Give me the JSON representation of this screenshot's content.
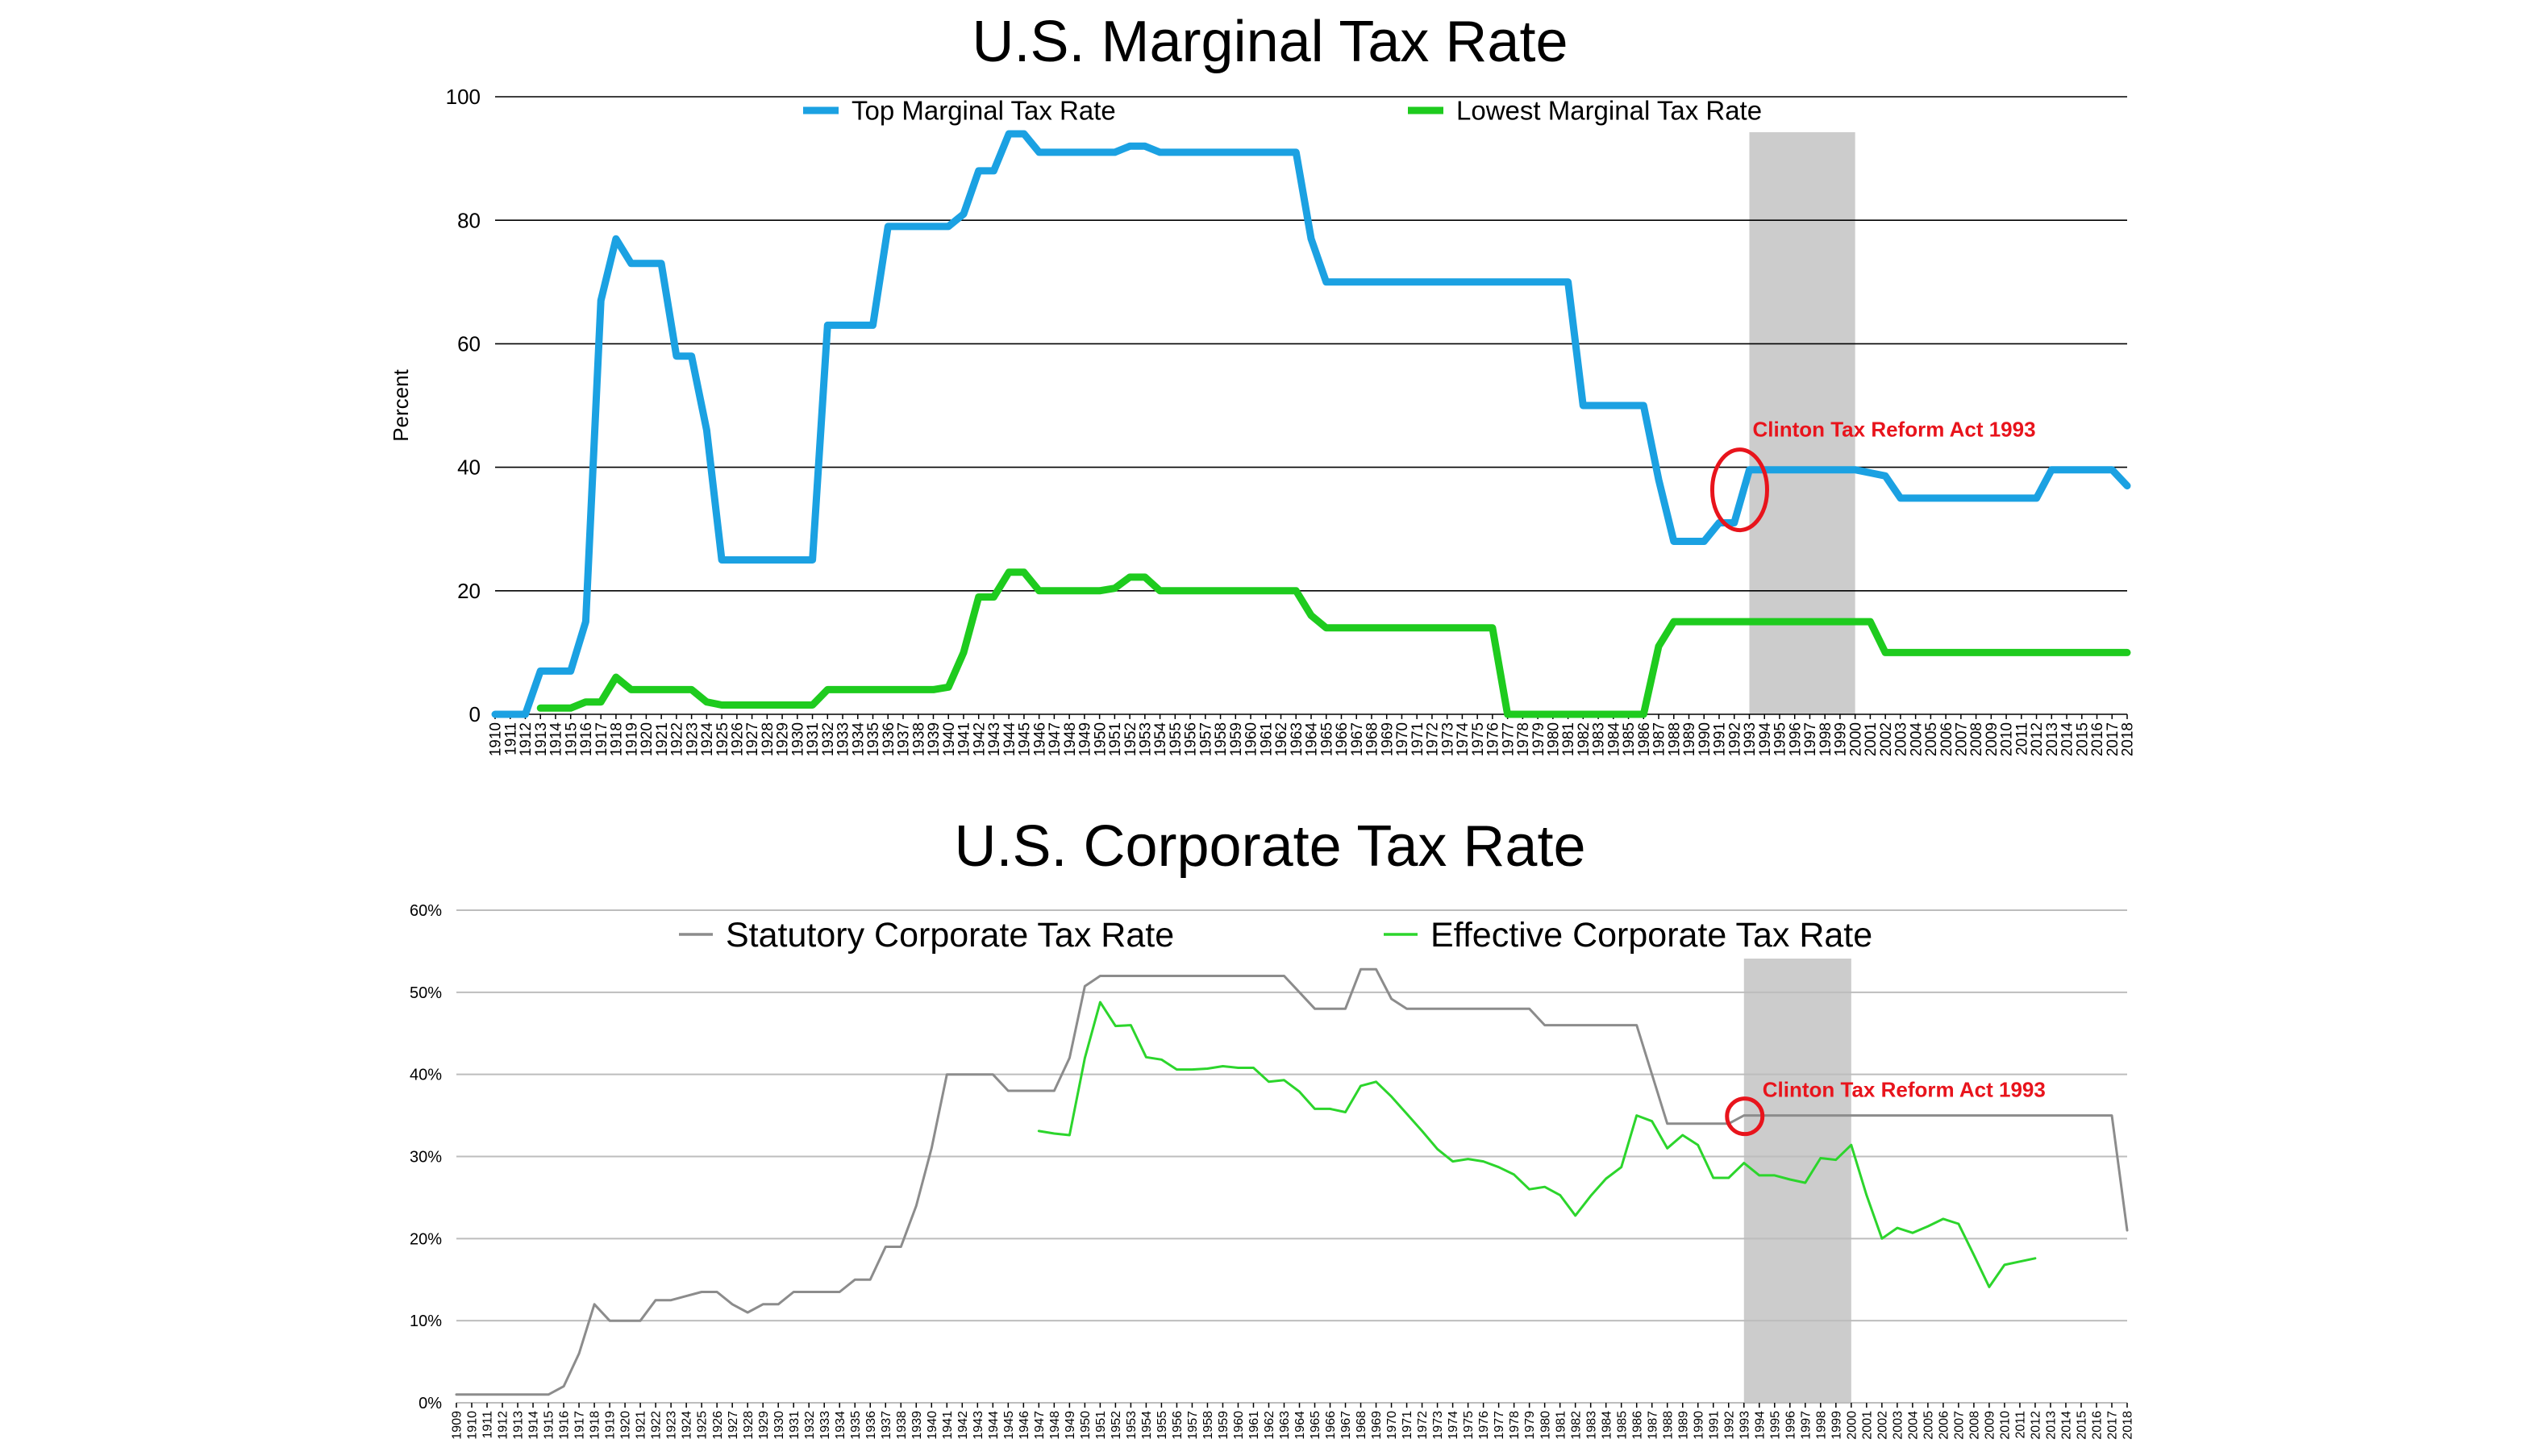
{
  "chart_data": [
    {
      "type": "line",
      "title": "U.S. Marginal Tax Rate",
      "xlabel": "",
      "ylabel": "Percent",
      "ylim": [
        0,
        100
      ],
      "yticks": [
        "0",
        "20",
        "40",
        "60",
        "80",
        "100"
      ],
      "grid": true,
      "legend_placement": "top",
      "x": [
        1910,
        1911,
        1912,
        1913,
        1914,
        1915,
        1916,
        1917,
        1918,
        1919,
        1920,
        1921,
        1922,
        1923,
        1924,
        1925,
        1926,
        1927,
        1928,
        1929,
        1930,
        1931,
        1932,
        1933,
        1934,
        1935,
        1936,
        1937,
        1938,
        1939,
        1940,
        1941,
        1942,
        1943,
        1944,
        1945,
        1946,
        1947,
        1948,
        1949,
        1950,
        1951,
        1952,
        1953,
        1954,
        1955,
        1956,
        1957,
        1958,
        1959,
        1960,
        1961,
        1962,
        1963,
        1964,
        1965,
        1966,
        1967,
        1968,
        1969,
        1970,
        1971,
        1972,
        1973,
        1974,
        1975,
        1976,
        1977,
        1978,
        1979,
        1980,
        1981,
        1982,
        1983,
        1984,
        1985,
        1986,
        1987,
        1988,
        1989,
        1990,
        1991,
        1992,
        1993,
        1994,
        1995,
        1996,
        1997,
        1998,
        1999,
        2000,
        2001,
        2002,
        2003,
        2004,
        2005,
        2006,
        2007,
        2008,
        2009,
        2010,
        2011,
        2012,
        2013,
        2014,
        2015,
        2016,
        2017,
        2018
      ],
      "series": [
        {
          "name": "Top Marginal Tax Rate",
          "color": "#1ba1e2",
          "values": [
            0,
            0,
            0,
            7,
            7,
            7,
            15,
            67,
            77,
            73,
            73,
            73,
            58,
            58,
            46,
            25,
            25,
            25,
            25,
            25,
            25,
            25,
            63,
            63,
            63,
            63,
            79,
            79,
            79,
            79,
            79,
            81,
            88,
            88,
            94,
            94,
            91,
            91,
            91,
            91,
            91,
            91,
            92,
            92,
            91,
            91,
            91,
            91,
            91,
            91,
            91,
            91,
            91,
            91,
            77,
            70,
            70,
            70,
            70,
            70,
            70,
            70,
            70,
            70,
            70,
            70,
            70,
            70,
            70,
            70,
            70,
            70,
            50,
            50,
            50,
            50,
            50,
            38,
            28,
            28,
            28,
            31,
            31,
            39.6,
            39.6,
            39.6,
            39.6,
            39.6,
            39.6,
            39.6,
            39.6,
            39.1,
            38.6,
            35,
            35,
            35,
            35,
            35,
            35,
            35,
            35,
            35,
            35,
            39.6,
            39.6,
            39.6,
            39.6,
            39.6,
            37
          ]
        },
        {
          "name": "Lowest Marginal Tax Rate",
          "color": "#1ecb1e",
          "values": [
            null,
            null,
            null,
            1,
            1,
            1,
            2,
            2,
            6,
            4,
            4,
            4,
            4,
            4,
            2,
            1.5,
            1.5,
            1.5,
            1.5,
            1.5,
            1.5,
            1.5,
            4,
            4,
            4,
            4,
            4,
            4,
            4,
            4,
            4.4,
            10,
            19,
            19,
            23,
            23,
            20,
            20,
            20,
            20,
            20,
            20.4,
            22.2,
            22.2,
            20,
            20,
            20,
            20,
            20,
            20,
            20,
            20,
            20,
            20,
            16,
            14,
            14,
            14,
            14,
            14,
            14,
            14,
            14,
            14,
            14,
            14,
            14,
            0,
            0,
            0,
            0,
            0,
            0,
            0,
            0,
            0,
            0,
            11,
            15,
            15,
            15,
            15,
            15,
            15,
            15,
            15,
            15,
            15,
            15,
            15,
            15,
            15,
            10,
            10,
            10,
            10,
            10,
            10,
            10,
            10,
            10,
            10,
            10,
            10,
            10,
            10,
            10,
            10,
            10
          ]
        }
      ],
      "shaded_region": {
        "x_start": 1993,
        "x_end": 2000,
        "color": "#cccccc"
      },
      "annotation": {
        "text": "Clinton Tax Reform Act 1993",
        "color": "#e8141c",
        "x": 1993,
        "y": 40
      }
    },
    {
      "type": "line",
      "title": "U.S. Corporate Tax Rate",
      "xlabel": "",
      "ylabel": "",
      "ylim": [
        0,
        60
      ],
      "yticks": [
        "0%",
        "10%",
        "20%",
        "30%",
        "40%",
        "50%",
        "60%"
      ],
      "grid": true,
      "legend_placement": "top",
      "x": [
        1909,
        1910,
        1911,
        1912,
        1913,
        1914,
        1915,
        1916,
        1917,
        1918,
        1919,
        1920,
        1921,
        1922,
        1923,
        1924,
        1925,
        1926,
        1927,
        1928,
        1929,
        1930,
        1931,
        1932,
        1933,
        1934,
        1935,
        1936,
        1937,
        1938,
        1939,
        1940,
        1941,
        1942,
        1943,
        1944,
        1945,
        1946,
        1947,
        1948,
        1949,
        1950,
        1951,
        1952,
        1953,
        1954,
        1955,
        1956,
        1957,
        1958,
        1959,
        1960,
        1961,
        1962,
        1963,
        1964,
        1965,
        1966,
        1967,
        1968,
        1969,
        1970,
        1971,
        1972,
        1973,
        1974,
        1975,
        1976,
        1977,
        1978,
        1979,
        1980,
        1981,
        1982,
        1983,
        1984,
        1985,
        1986,
        1987,
        1988,
        1989,
        1990,
        1991,
        1992,
        1993,
        1994,
        1995,
        1996,
        1997,
        1998,
        1999,
        2000,
        2001,
        2002,
        2003,
        2004,
        2005,
        2006,
        2007,
        2008,
        2009,
        2010,
        2011,
        2012,
        2013,
        2014,
        2015,
        2016,
        2017,
        2018
      ],
      "series": [
        {
          "name": "Statutory Corporate Tax Rate",
          "color": "#8c8c8c",
          "values": [
            1,
            1,
            1,
            1,
            1,
            1,
            1,
            2,
            6,
            12,
            10,
            10,
            10,
            12.5,
            12.5,
            13,
            13.5,
            13.5,
            12,
            11,
            12,
            12,
            13.5,
            13.5,
            13.5,
            13.5,
            15,
            15,
            19,
            19,
            24,
            31,
            40,
            40,
            40,
            40,
            38,
            38,
            38,
            38,
            42,
            50.75,
            52,
            52,
            52,
            52,
            52,
            52,
            52,
            52,
            52,
            52,
            52,
            52,
            52,
            50,
            48,
            48,
            48,
            52.8,
            52.8,
            49.2,
            48,
            48,
            48,
            48,
            48,
            48,
            48,
            48,
            48,
            46,
            46,
            46,
            46,
            46,
            46,
            46,
            40,
            34,
            34,
            34,
            34,
            34,
            35,
            35,
            35,
            35,
            35,
            35,
            35,
            35,
            35,
            35,
            35,
            35,
            35,
            35,
            35,
            35,
            35,
            35,
            35,
            35,
            35,
            35,
            35,
            35,
            35,
            21
          ]
        },
        {
          "name": "Effective Corporate Tax Rate",
          "color": "#2cd52c",
          "values": [
            null,
            null,
            null,
            null,
            null,
            null,
            null,
            null,
            null,
            null,
            null,
            null,
            null,
            null,
            null,
            null,
            null,
            null,
            null,
            null,
            null,
            null,
            null,
            null,
            null,
            null,
            null,
            null,
            null,
            null,
            null,
            null,
            null,
            null,
            null,
            null,
            null,
            null,
            33.1,
            32.8,
            32.6,
            42,
            48.8,
            45.9,
            46,
            42.1,
            41.8,
            40.6,
            40.6,
            40.7,
            41,
            40.8,
            40.8,
            39.1,
            39.3,
            37.9,
            35.8,
            35.8,
            35.4,
            38.6,
            39.1,
            37.3,
            35.2,
            33.1,
            30.9,
            29.4,
            29.7,
            29.4,
            28.7,
            27.8,
            26,
            26.3,
            25.3,
            22.8,
            25.2,
            27.3,
            28.7,
            35,
            34.3,
            31,
            32.6,
            31.4,
            27.4,
            27.4,
            29.2,
            27.7,
            27.7,
            27.2,
            26.8,
            29.8,
            29.6,
            31.4,
            25.3,
            20,
            21.3,
            20.7,
            21.5,
            22.4,
            21.8,
            18,
            14.1,
            16.8,
            17.2,
            17.6,
            null,
            null,
            null,
            null,
            null,
            null
          ]
        }
      ],
      "shaded_region": {
        "x_start": 1993,
        "x_end": 2000,
        "color": "#cccccc"
      },
      "annotation": {
        "text": "Clinton Tax Reform Act 1993",
        "color": "#e8141c",
        "x": 1992,
        "y": 34.5
      }
    }
  ]
}
